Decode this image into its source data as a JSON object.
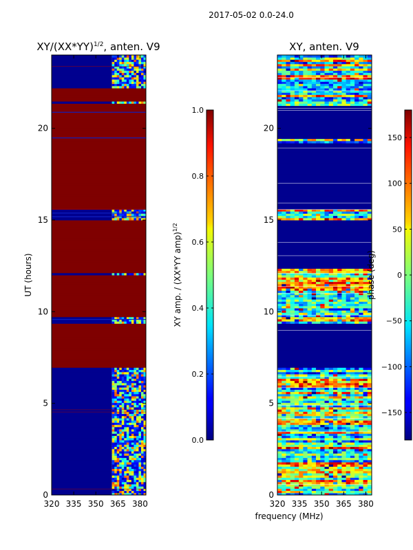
{
  "suptitle": "2017-05-02 0.0-24.0",
  "chart_data": [
    {
      "type": "heatmap",
      "title_main": "XY/(XX*YY)",
      "title_sup": "1/2",
      "title_rest": ", anten. V9",
      "ylabel": "UT (hours)",
      "xlim": [
        320,
        384
      ],
      "ylim": [
        0,
        24
      ],
      "xticks": [
        "320",
        "335",
        "350",
        "365",
        "380"
      ],
      "xtick_values": [
        320,
        335,
        350,
        365,
        380
      ],
      "yticks": [
        "0",
        "5",
        "10",
        "15",
        "20"
      ],
      "ytick_values": [
        0,
        5,
        10,
        15,
        20
      ],
      "high_value_hour_bands": [
        [
          7.0,
          9.3
        ],
        [
          9.7,
          12.0
        ],
        [
          12.1,
          15.0
        ],
        [
          15.6,
          21.3
        ],
        [
          21.5,
          22.2
        ]
      ],
      "colorbar": {
        "label_main": "XY amp. / (XX*YY amp)",
        "label_sup": "1/2",
        "range": [
          0.0,
          1.0
        ],
        "ticks": [
          "0.0",
          "0.2",
          "0.4",
          "0.6",
          "0.8",
          "1.0"
        ],
        "tick_values": [
          0.0,
          0.2,
          0.4,
          0.6,
          0.8,
          1.0
        ]
      }
    },
    {
      "type": "heatmap",
      "title": "XY, anten. V9",
      "xlabel": "frequency (MHz)",
      "xlim": [
        320,
        384
      ],
      "ylim": [
        0,
        24
      ],
      "xticks": [
        "320",
        "335",
        "350",
        "365",
        "380"
      ],
      "xtick_values": [
        320,
        335,
        350,
        365,
        380
      ],
      "yticks": [
        "0",
        "5",
        "10",
        "15",
        "20"
      ],
      "ytick_values": [
        0,
        5,
        10,
        15,
        20
      ],
      "low_value_hour_bands": [
        [
          7.0,
          9.3
        ],
        [
          12.4,
          15.0
        ],
        [
          15.6,
          19.2
        ],
        [
          19.4,
          21.2
        ]
      ],
      "colorbar": {
        "label": "phase (deg)",
        "range": [
          -180,
          180
        ],
        "ticks": [
          "−150",
          "−100",
          "−50",
          "0",
          "50",
          "100",
          "150"
        ],
        "tick_values": [
          -150,
          -100,
          -50,
          0,
          50,
          100,
          150
        ]
      }
    }
  ]
}
